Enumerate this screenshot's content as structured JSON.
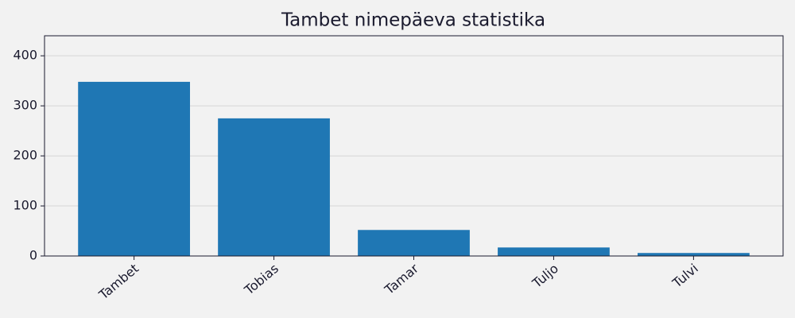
{
  "chart_data": {
    "type": "bar",
    "title": "Tambet nimepäeva statistika",
    "categories": [
      "Tambet",
      "Tobias",
      "Tamar",
      "Tuljo",
      "Tulvi"
    ],
    "values": [
      348,
      275,
      52,
      17,
      6
    ],
    "color": "#1f77b4",
    "ylim": [
      0,
      440
    ],
    "yticks": [
      0,
      100,
      200,
      300,
      400
    ],
    "grid": true
  }
}
